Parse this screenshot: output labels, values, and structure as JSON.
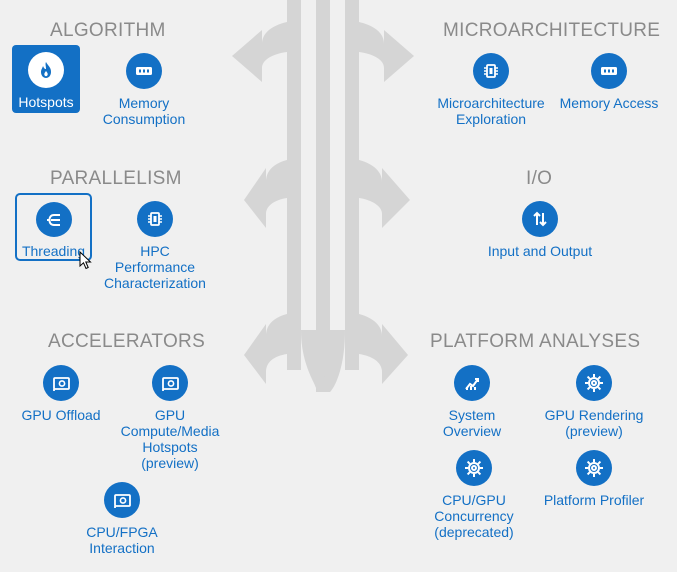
{
  "sections": {
    "algorithm": "ALGORITHM",
    "microarchitecture": "MICROARCHITECTURE",
    "parallelism": "PARALLELISM",
    "io": "I/O",
    "accelerators": "ACCELERATORS",
    "platform": "PLATFORM ANALYSES"
  },
  "analyses": {
    "hotspots": {
      "label": "Hotspots",
      "icon": "flame-icon",
      "state": "selected"
    },
    "memory_consumption": {
      "label": "Memory\nConsumption",
      "icon": "memory-icon"
    },
    "microarchitecture_exploration": {
      "label": "Microarchitecture\nExploration",
      "icon": "chip-icon"
    },
    "memory_access": {
      "label": "Memory Access",
      "icon": "memory-icon"
    },
    "threading": {
      "label": "Threading",
      "icon": "threads-icon",
      "state": "focused"
    },
    "hpc": {
      "label": "HPC\nPerformance\nCharacterization",
      "icon": "chip-icon"
    },
    "io": {
      "label": "Input and Output",
      "icon": "up-down-arrows-icon"
    },
    "gpu_offload": {
      "label": "GPU Offload",
      "icon": "gpu-card-icon"
    },
    "gpu_compute": {
      "label": "GPU\nCompute/Media\nHotspots\n(preview)",
      "icon": "gpu-card-icon"
    },
    "cpu_fpga": {
      "label": "CPU/FPGA\nInteraction",
      "icon": "gpu-card-icon"
    },
    "system_overview": {
      "label": "System\nOverview",
      "icon": "chart-icon"
    },
    "gpu_rendering": {
      "label": "GPU Rendering\n(preview)",
      "icon": "gear-icon"
    },
    "cpu_gpu_concurrency": {
      "label": "CPU/GPU\nConcurrency\n(deprecated)",
      "icon": "gear-icon"
    },
    "platform_profiler": {
      "label": "Platform Profiler",
      "icon": "gear-icon"
    }
  },
  "colors": {
    "accent": "#1370c5",
    "section_title": "#8a8a8a",
    "background": "#f0f0f0",
    "arrows": "#d6d6d6"
  }
}
